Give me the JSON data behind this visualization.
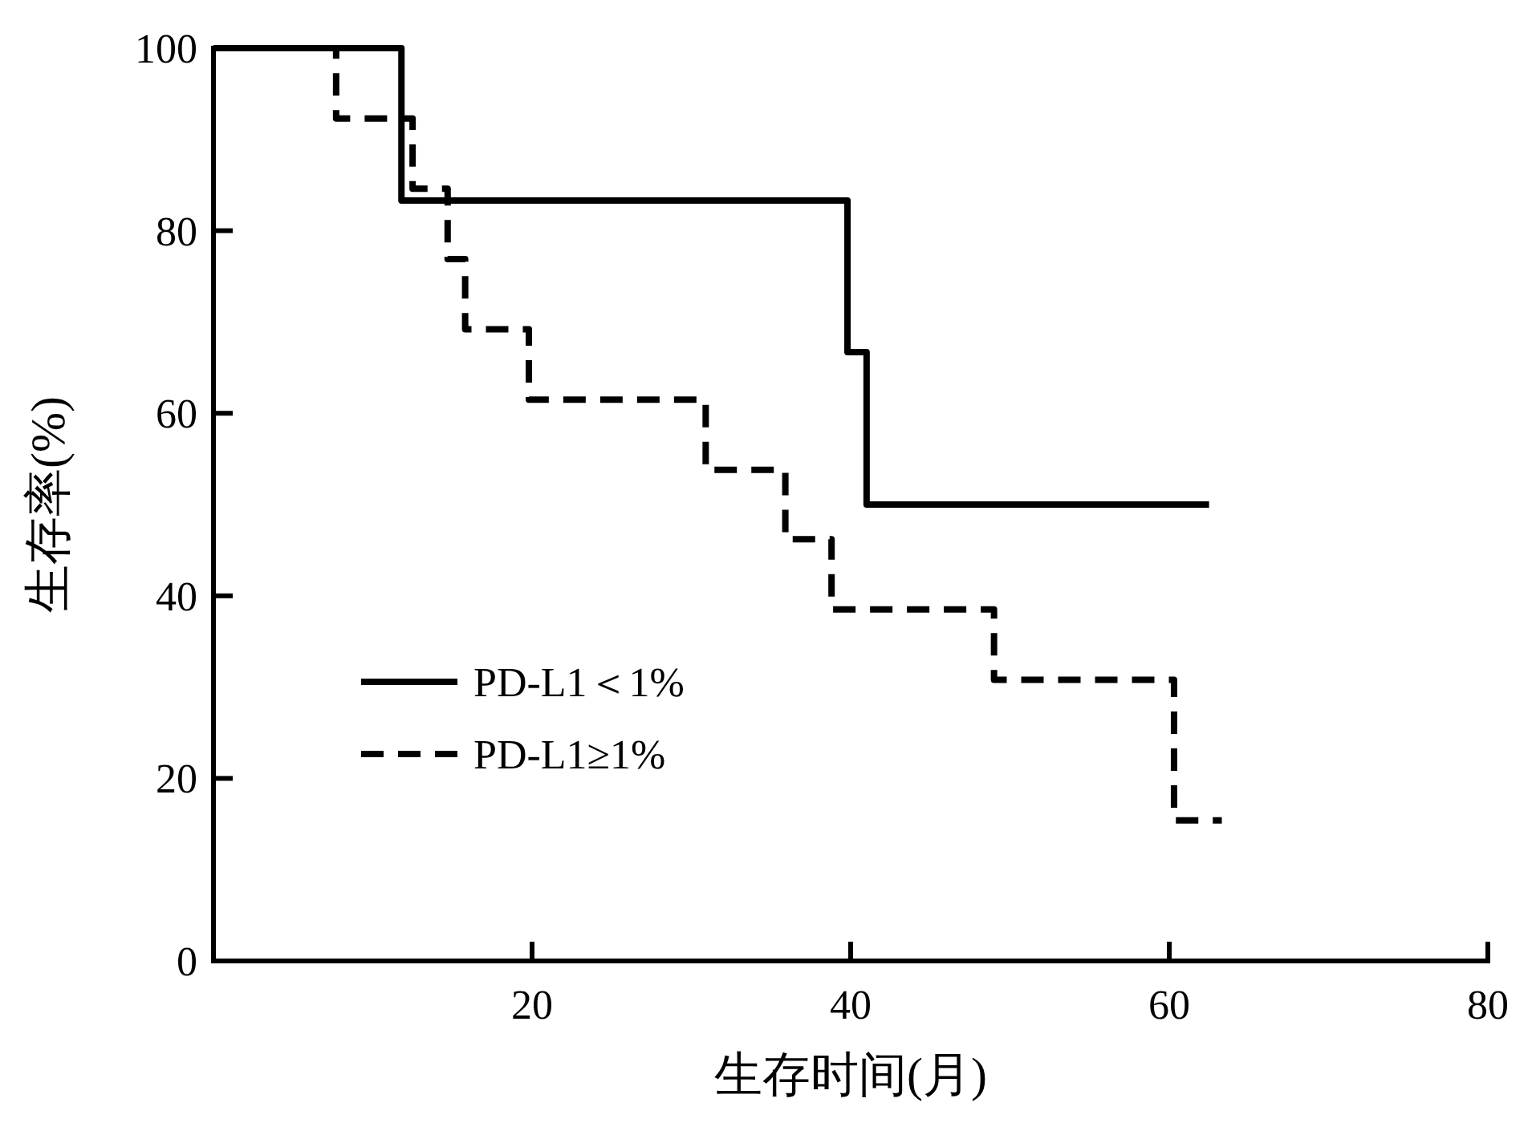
{
  "chart_data": {
    "type": "step",
    "xlabel": "生存时间(月)",
    "ylabel": "生存率(%)",
    "xlim": [
      0,
      80
    ],
    "xticks": [
      20,
      40,
      60,
      80
    ],
    "ylim": [
      0,
      100
    ],
    "yticks": [
      0,
      20,
      40,
      60,
      80,
      100
    ],
    "grid": false,
    "legend": "bottom left",
    "marker": "none",
    "series": [
      {
        "name": "PD-L1＜1%",
        "color": "#000000",
        "line_style": "solid",
        "x": [
          0,
          11.8,
          39.8,
          41,
          62.5
        ],
        "values": [
          100,
          83.3,
          66.7,
          50,
          50
        ]
      },
      {
        "name": "PD-L1≥1%",
        "color": "#000000",
        "line_style": "dashed",
        "x": [
          0,
          7.7,
          12.5,
          14.7,
          15.8,
          19.8,
          30.9,
          35.9,
          38.8,
          49,
          60.3,
          63.3
        ],
        "values": [
          100,
          92.3,
          84.6,
          76.9,
          69.2,
          61.5,
          53.8,
          46.2,
          38.5,
          30.8,
          15.4,
          15.4
        ]
      }
    ]
  }
}
